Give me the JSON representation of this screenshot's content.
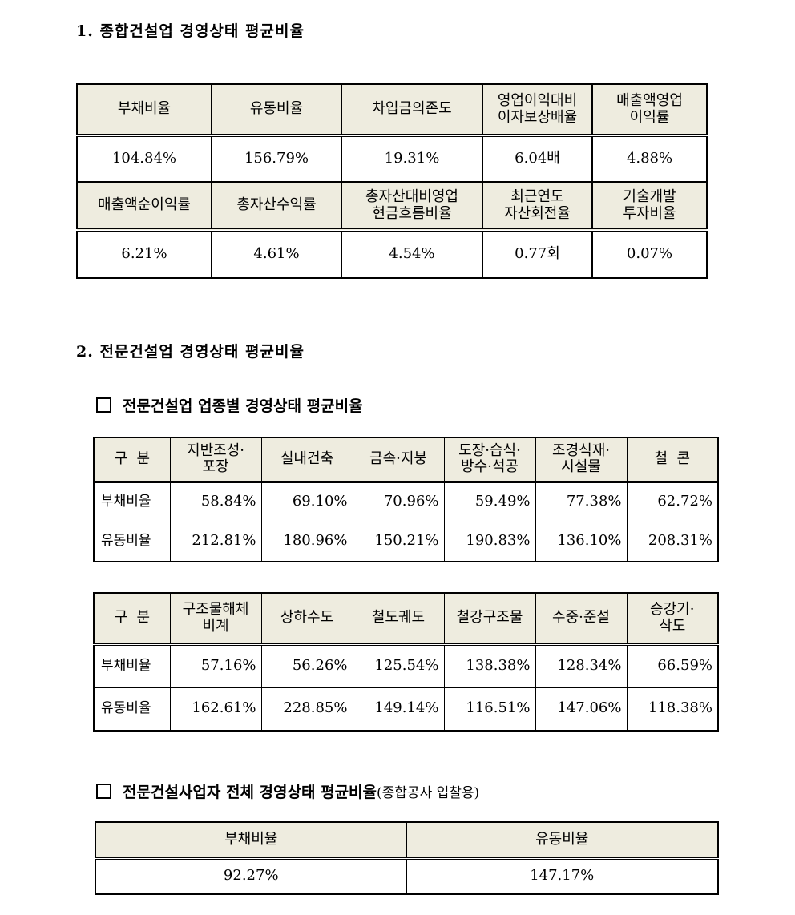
{
  "section1": {
    "title": "1. 종합건설업 경영상태 평균비율",
    "rows": [
      {
        "headers": [
          "부채비율",
          "유동비율",
          "차입금의존도",
          "영업이익대비\n이자보상배율",
          "매출액영업\n이익률"
        ],
        "values": [
          "104.84%",
          "156.79%",
          "19.31%",
          "6.04배",
          "4.88%"
        ]
      },
      {
        "headers": [
          "매출액순이익률",
          "총자산수익률",
          "총자산대비영업\n현금흐름비율",
          "최근연도\n자산회전율",
          "기술개발\n투자비율"
        ],
        "values": [
          "6.21%",
          "4.61%",
          "4.54%",
          "0.77회",
          "0.07%"
        ]
      }
    ]
  },
  "section2": {
    "title": "2. 전문건설업 경영상태 평균비율",
    "subtitle1": "전문건설업 업종별 경영상태 평균비율",
    "table_a": {
      "headers": [
        "구  분",
        "지반조성·\n포장",
        "실내건축",
        "금속·지붕",
        "도장·습식·\n방수·석공",
        "조경식재·\n시설물",
        "철  콘"
      ],
      "rows": [
        {
          "label": "부채비율",
          "values": [
            "58.84%",
            "69.10%",
            "70.96%",
            "59.49%",
            "77.38%",
            "62.72%"
          ]
        },
        {
          "label": "유동비율",
          "values": [
            "212.81%",
            "180.96%",
            "150.21%",
            "190.83%",
            "136.10%",
            "208.31%"
          ]
        }
      ]
    },
    "table_b": {
      "headers": [
        "구  분",
        "구조물해체\n비계",
        "상하수도",
        "철도궤도",
        "철강구조물",
        "수중·준설",
        "승강기·\n삭도"
      ],
      "rows": [
        {
          "label": "부채비율",
          "values": [
            "57.16%",
            "56.26%",
            "125.54%",
            "138.38%",
            "128.34%",
            "66.59%"
          ]
        },
        {
          "label": "유동비율",
          "values": [
            "162.61%",
            "228.85%",
            "149.14%",
            "116.51%",
            "147.06%",
            "118.38%"
          ]
        }
      ]
    },
    "subtitle2": "전문건설사업자 전체 경영상태 평균비율",
    "subtitle2_paren": "(종합공사 입찰용)",
    "table_c": {
      "headers": [
        "부채비율",
        "유동비율"
      ],
      "values": [
        "92.27%",
        "147.17%"
      ]
    }
  }
}
